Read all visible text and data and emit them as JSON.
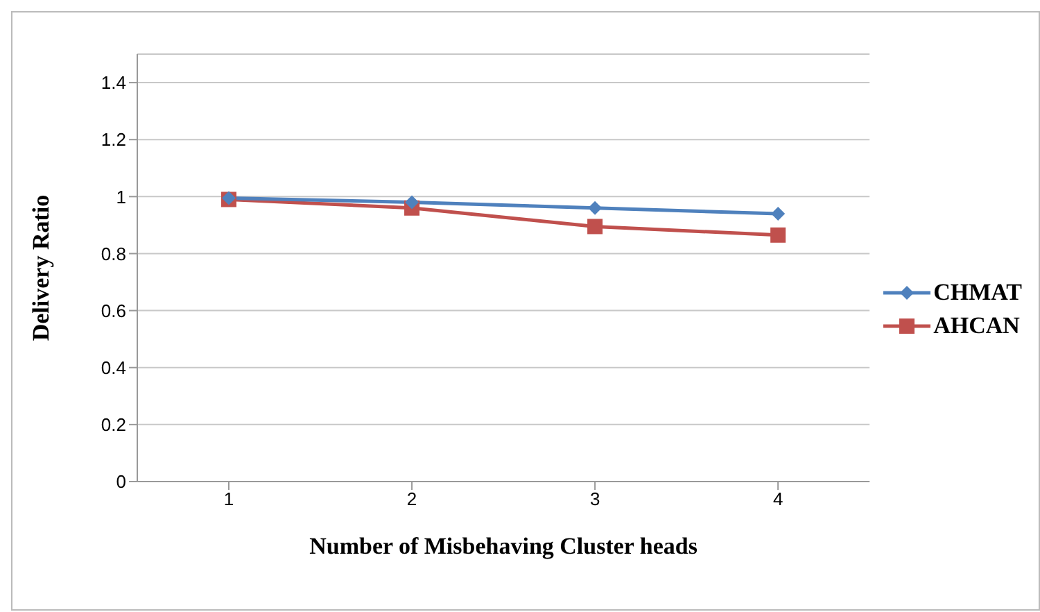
{
  "chart_data": {
    "type": "line",
    "xlabel": "Number of Misbehaving Cluster heads",
    "ylabel": "Delivery Ratio",
    "categories": [
      "1",
      "2",
      "3",
      "4"
    ],
    "series": [
      {
        "name": "CHMAT",
        "color": "#4f81bd",
        "marker": "diamond",
        "values": [
          0.995,
          0.98,
          0.96,
          0.94
        ]
      },
      {
        "name": "AHCAN",
        "color": "#c0504d",
        "marker": "square",
        "values": [
          0.99,
          0.96,
          0.895,
          0.865
        ]
      }
    ],
    "ylim": [
      0,
      1.5
    ],
    "yticks": [
      0,
      0.2,
      0.4,
      0.6,
      0.8,
      1,
      1.2,
      1.4
    ],
    "grid": "y",
    "legend": "right"
  }
}
